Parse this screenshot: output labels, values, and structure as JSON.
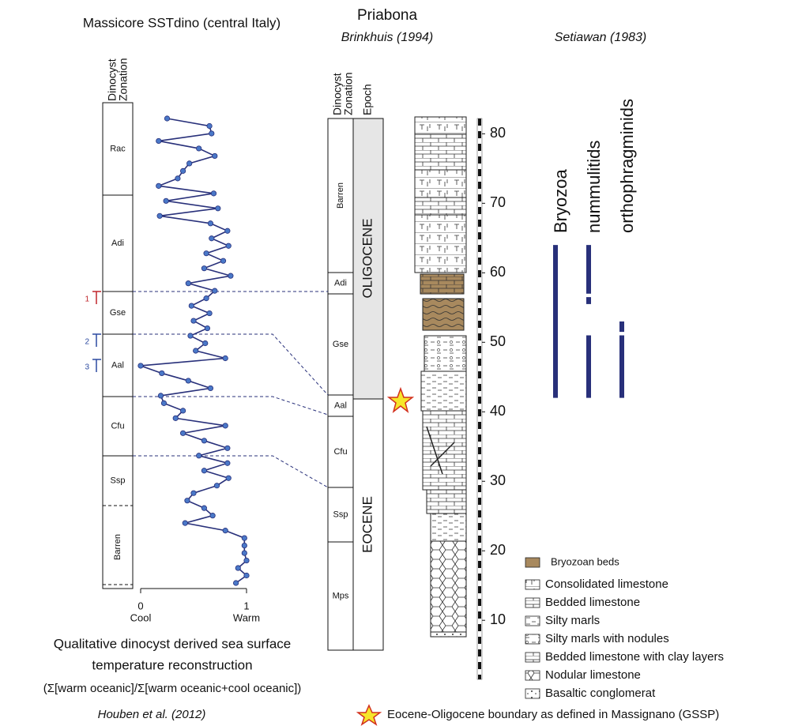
{
  "header": {
    "left_title": "Massicore SSTdino (central Italy)",
    "middle_title": "Priabona",
    "middle_subtitle": "Brinkhuis (1994)",
    "right_subtitle": "Setiawan (1983)"
  },
  "left_column": {
    "header": [
      "Dinocyst",
      "Zonation"
    ],
    "zones": [
      "Rac",
      "Adi",
      "Gse",
      "Aal",
      "Cfu",
      "Ssp",
      "Barren"
    ],
    "markers": [
      "1",
      "2",
      "3"
    ]
  },
  "middle_columns": {
    "zonation_header": [
      "Dinocyst",
      "Zonation"
    ],
    "epoch_header": "Epoch",
    "zones": [
      "Barren",
      "Adi",
      "Gse",
      "Aal",
      "Cfu",
      "Ssp",
      "Mps"
    ],
    "epochs": [
      "OLIGOCENE",
      "EOCENE"
    ]
  },
  "chart_data": [
    {
      "type": "line",
      "color": "#28307a",
      "xlim": [
        0,
        1
      ],
      "xticks": [
        0,
        1
      ],
      "xlabels": [
        "Cool",
        "Warm"
      ],
      "values": [
        0.25,
        0.65,
        0.67,
        0.17,
        0.55,
        0.7,
        0.46,
        0.4,
        0.35,
        0.17,
        0.69,
        0.24,
        0.73,
        0.18,
        0.66,
        0.82,
        0.67,
        0.83,
        0.62,
        0.78,
        0.6,
        0.85,
        0.45,
        0.7,
        0.62,
        0.48,
        0.65,
        0.5,
        0.63,
        0.47,
        0.61,
        0.52,
        0.8,
        0.0,
        0.2,
        0.45,
        0.66,
        0.19,
        0.22,
        0.4,
        0.33,
        0.8,
        0.4,
        0.6,
        0.82,
        0.55,
        0.82,
        0.6,
        0.83,
        0.72,
        0.5,
        0.44,
        0.6,
        0.68,
        0.42,
        0.8,
        0.98,
        0.98,
        0.98,
        1.0,
        0.92,
        1.0,
        0.9
      ],
      "caption": [
        "Qualitative dinocyst derived sea surface",
        "temperature reconstruction",
        "(Σ[warm oceanic]/Σ[warm oceanic+cool oceanic])"
      ],
      "source": "Houben et al. (2012)"
    },
    {
      "type": "range",
      "ylim": [
        1.5,
        82.2
      ],
      "yticks": [
        10,
        20,
        30,
        40,
        50,
        60,
        70,
        80
      ],
      "color": "#28307a",
      "series": [
        {
          "name": "Bryozoa",
          "values": [
            [
              42,
              64
            ]
          ]
        },
        {
          "name": "nummulitids",
          "values": [
            [
              42,
              51
            ],
            [
              55.5,
              56.5
            ],
            [
              57,
              64
            ]
          ]
        },
        {
          "name": "orthophragminids",
          "values": [
            [
              42,
              51
            ],
            [
              51.5,
              53
            ]
          ]
        }
      ]
    }
  ],
  "legend": {
    "items": [
      "Bryozoan beds",
      "Consolidated limestone",
      "Bedded limestone",
      "Silty marls",
      "Silty marls with nodules",
      "Bedded limestone with clay layers",
      "Nodular limestone",
      "Basaltic conglomerat"
    ],
    "star_note": "Eocene-Oligocene boundary as defined in Massignano (GSSP)"
  }
}
